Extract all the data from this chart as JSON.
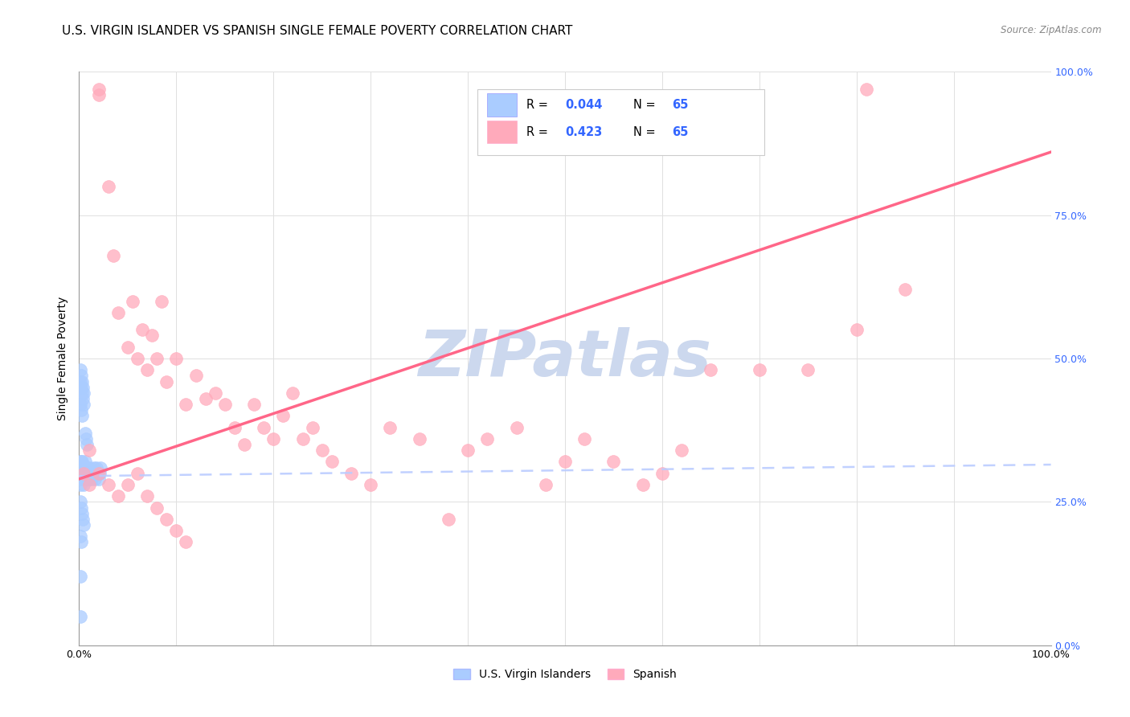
{
  "title": "U.S. VIRGIN ISLANDER VS SPANISH SINGLE FEMALE POVERTY CORRELATION CHART",
  "source": "Source: ZipAtlas.com",
  "ylabel": "Single Female Poverty",
  "watermark": "ZIPatlas",
  "legend_r1_label": "R = ",
  "legend_r1_val": "0.044",
  "legend_n1_label": "N = ",
  "legend_n1_val": "65",
  "legend_r2_label": "R = ",
  "legend_r2_val": "0.423",
  "legend_n2_label": "N = ",
  "legend_n2_val": "65",
  "legend_label1": "U.S. Virgin Islanders",
  "legend_label2": "Spanish",
  "color_blue_fill": "#aaccff",
  "color_pink_fill": "#ffaabb",
  "color_blue_line": "#bbccff",
  "color_pink_line": "#ff6688",
  "color_blue_text": "#3366ff",
  "ytick_labels": [
    "0.0%",
    "25.0%",
    "50.0%",
    "75.0%",
    "100.0%"
  ],
  "ytick_values": [
    0.0,
    0.25,
    0.5,
    0.75,
    1.0
  ],
  "xtick_labels": [
    "0.0%",
    "",
    "",
    "",
    "",
    "",
    "",
    "",
    "",
    "",
    "100.0%"
  ],
  "xtick_values": [
    0.0,
    0.1,
    0.2,
    0.3,
    0.4,
    0.5,
    0.6,
    0.7,
    0.8,
    0.9,
    1.0
  ],
  "blue_x": [
    0.001,
    0.001,
    0.001,
    0.001,
    0.002,
    0.002,
    0.002,
    0.002,
    0.003,
    0.003,
    0.003,
    0.003,
    0.004,
    0.004,
    0.004,
    0.005,
    0.005,
    0.005,
    0.006,
    0.006,
    0.007,
    0.007,
    0.008,
    0.008,
    0.009,
    0.009,
    0.01,
    0.01,
    0.011,
    0.012,
    0.013,
    0.014,
    0.015,
    0.016,
    0.017,
    0.018,
    0.019,
    0.02,
    0.021,
    0.022,
    0.001,
    0.001,
    0.002,
    0.002,
    0.003,
    0.003,
    0.004,
    0.004,
    0.005,
    0.005,
    0.006,
    0.007,
    0.008,
    0.001,
    0.002,
    0.003,
    0.004,
    0.005,
    0.001,
    0.002,
    0.003,
    0.001,
    0.002,
    0.001,
    0.001
  ],
  "blue_y": [
    0.3,
    0.32,
    0.28,
    0.31,
    0.3,
    0.32,
    0.29,
    0.31,
    0.3,
    0.32,
    0.29,
    0.31,
    0.3,
    0.29,
    0.31,
    0.3,
    0.28,
    0.31,
    0.3,
    0.32,
    0.29,
    0.31,
    0.3,
    0.29,
    0.3,
    0.31,
    0.29,
    0.3,
    0.31,
    0.3,
    0.29,
    0.3,
    0.31,
    0.29,
    0.3,
    0.31,
    0.3,
    0.29,
    0.3,
    0.31,
    0.46,
    0.48,
    0.45,
    0.47,
    0.44,
    0.46,
    0.43,
    0.45,
    0.42,
    0.44,
    0.37,
    0.36,
    0.35,
    0.25,
    0.24,
    0.23,
    0.22,
    0.21,
    0.42,
    0.41,
    0.4,
    0.19,
    0.18,
    0.12,
    0.05
  ],
  "pink_x": [
    0.005,
    0.01,
    0.02,
    0.02,
    0.03,
    0.035,
    0.04,
    0.05,
    0.055,
    0.06,
    0.065,
    0.07,
    0.075,
    0.08,
    0.085,
    0.09,
    0.1,
    0.11,
    0.12,
    0.13,
    0.14,
    0.15,
    0.16,
    0.17,
    0.18,
    0.19,
    0.2,
    0.21,
    0.22,
    0.23,
    0.24,
    0.25,
    0.26,
    0.28,
    0.3,
    0.32,
    0.35,
    0.38,
    0.4,
    0.42,
    0.45,
    0.48,
    0.5,
    0.52,
    0.55,
    0.58,
    0.6,
    0.62,
    0.65,
    0.7,
    0.75,
    0.8,
    0.85,
    0.01,
    0.02,
    0.03,
    0.04,
    0.05,
    0.06,
    0.07,
    0.08,
    0.09,
    0.1,
    0.11,
    0.81
  ],
  "pink_y": [
    0.3,
    0.28,
    0.96,
    0.97,
    0.8,
    0.68,
    0.58,
    0.52,
    0.6,
    0.5,
    0.55,
    0.48,
    0.54,
    0.5,
    0.6,
    0.46,
    0.5,
    0.42,
    0.47,
    0.43,
    0.44,
    0.42,
    0.38,
    0.35,
    0.42,
    0.38,
    0.36,
    0.4,
    0.44,
    0.36,
    0.38,
    0.34,
    0.32,
    0.3,
    0.28,
    0.38,
    0.36,
    0.22,
    0.34,
    0.36,
    0.38,
    0.28,
    0.32,
    0.36,
    0.32,
    0.28,
    0.3,
    0.34,
    0.48,
    0.48,
    0.48,
    0.55,
    0.62,
    0.34,
    0.3,
    0.28,
    0.26,
    0.28,
    0.3,
    0.26,
    0.24,
    0.22,
    0.2,
    0.18,
    0.97
  ],
  "blue_line_x": [
    0.0,
    1.0
  ],
  "blue_line_y": [
    0.295,
    0.315
  ],
  "pink_line_x": [
    0.0,
    1.0
  ],
  "pink_line_y": [
    0.29,
    0.86
  ],
  "grid_color": "#e0e0e0",
  "title_fontsize": 11,
  "axis_fontsize": 10,
  "tick_fontsize": 9,
  "watermark_color": "#ccd8ee",
  "watermark_fontsize": 58
}
